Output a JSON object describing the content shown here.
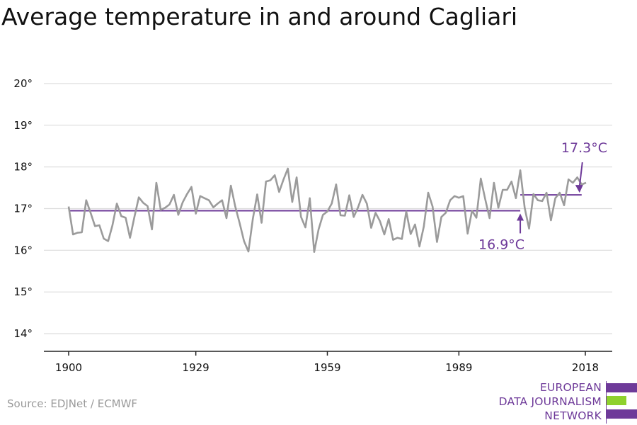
{
  "title": "Average temperature in and around Cagliari",
  "source": "Source: EDJNet / ECMWF",
  "logo": {
    "lines": [
      "EUROPEAN",
      "DATA JOURNALISM",
      "NETWORK"
    ]
  },
  "colors": {
    "series": "#9b9b9b",
    "accent": "#6e3a99",
    "green": "#8fd12e",
    "grid": "#dddddd",
    "axis": "#222222"
  },
  "chart_data": {
    "type": "line",
    "title": "Average temperature in and around Cagliari",
    "xlim": [
      1900,
      2018
    ],
    "ylim": [
      14,
      20
    ],
    "x_ticks": [
      1900,
      1929,
      1959,
      1989,
      2018
    ],
    "y_ticks": [
      14,
      15,
      16,
      17,
      18,
      19,
      20
    ],
    "y_tick_labels": [
      "14°",
      "15°",
      "16°",
      "17°",
      "18°",
      "19°",
      "20°"
    ],
    "grid": true,
    "series": [
      {
        "x": [
          1900,
          1901,
          1902,
          1903,
          1904,
          1905,
          1906,
          1907,
          1908,
          1909,
          1910,
          1911,
          1912,
          1913,
          1914,
          1915,
          1916,
          1917,
          1918,
          1919,
          1920,
          1921,
          1922,
          1923,
          1924,
          1925,
          1926,
          1927,
          1928,
          1929,
          1930,
          1931,
          1932,
          1933,
          1934,
          1935,
          1936,
          1937,
          1938,
          1939,
          1940,
          1941,
          1942,
          1943,
          1944,
          1945,
          1946,
          1947,
          1948,
          1949,
          1950,
          1951,
          1952,
          1953,
          1954,
          1955,
          1956,
          1957,
          1958,
          1959,
          1960,
          1961,
          1962,
          1963,
          1964,
          1965,
          1966,
          1967,
          1968,
          1969,
          1970,
          1971,
          1972,
          1973,
          1974,
          1975,
          1976,
          1977,
          1978,
          1979,
          1980,
          1981,
          1982,
          1983,
          1984,
          1985,
          1986,
          1987,
          1988,
          1989,
          1990,
          1991,
          1992,
          1993,
          1994,
          1995,
          1996,
          1997,
          1998,
          1999,
          2000,
          2001,
          2002,
          2003,
          2004,
          2005,
          2006,
          2007,
          2008,
          2009,
          2010,
          2011,
          2012,
          2013,
          2014,
          2015,
          2016,
          2017,
          2018
        ],
        "y": [
          17.05,
          16.38,
          16.42,
          16.43,
          17.2,
          16.9,
          16.58,
          16.6,
          16.28,
          16.22,
          16.6,
          17.12,
          16.82,
          16.78,
          16.3,
          16.8,
          17.27,
          17.14,
          17.06,
          16.5,
          17.62,
          16.97,
          17.02,
          17.1,
          17.33,
          16.85,
          17.15,
          17.35,
          17.52,
          16.88,
          17.3,
          17.25,
          17.2,
          17.03,
          17.12,
          17.2,
          16.77,
          17.55,
          17.05,
          16.65,
          16.22,
          15.97,
          16.75,
          17.34,
          16.66,
          17.65,
          17.68,
          17.8,
          17.4,
          17.7,
          17.96,
          17.16,
          17.75,
          16.8,
          16.55,
          17.25,
          15.96,
          16.5,
          16.85,
          16.93,
          17.12,
          17.58,
          16.84,
          16.83,
          17.32,
          16.8,
          17.03,
          17.33,
          17.12,
          16.54,
          16.9,
          16.7,
          16.38,
          16.75,
          16.25,
          16.3,
          16.27,
          16.93,
          16.39,
          16.62,
          16.09,
          16.57,
          17.38,
          17.05,
          16.2,
          16.8,
          16.9,
          17.2,
          17.3,
          17.26,
          17.3,
          16.4,
          16.95,
          16.78,
          17.72,
          17.23,
          16.77,
          17.62,
          17.02,
          17.45,
          17.45,
          17.65,
          17.25,
          17.92,
          17.02,
          16.52,
          17.35,
          17.2,
          17.18,
          17.38,
          16.72,
          17.25,
          17.38,
          17.08,
          17.7,
          17.62,
          17.75,
          17.58,
          17.62
        ]
      }
    ],
    "averages": [
      {
        "x0": 1900,
        "x1": 2003,
        "y": 16.95,
        "label": "16.9°C"
      },
      {
        "x0": 2003,
        "x1": 2017,
        "y": 17.33,
        "label": "17.3°C"
      }
    ]
  }
}
